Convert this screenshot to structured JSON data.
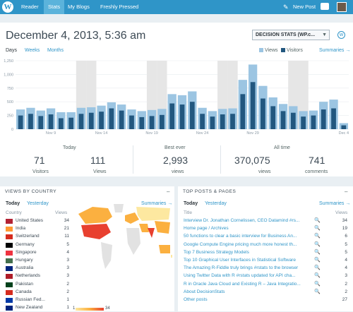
{
  "topbar": {
    "logo": "W",
    "nav": [
      {
        "label": "Reader",
        "active": false
      },
      {
        "label": "Stats",
        "active": true
      },
      {
        "label": "My Blogs",
        "active": false
      },
      {
        "label": "Freshly Pressed",
        "active": false
      }
    ],
    "new_post": "New Post"
  },
  "header": {
    "date_title": "December 4, 2013, 5:36 am",
    "site_select": "DECISION STATS (WP.c...",
    "periods": [
      "Days",
      "Weeks",
      "Months"
    ],
    "legend": {
      "views": "Views",
      "visitors": "Visitors"
    },
    "summaries": "Summaries →"
  },
  "colors": {
    "brand": "#2f95c8",
    "views_bar": "#9cc5e2",
    "visitors_bar": "#22577f",
    "weekend": "#e6e6e6"
  },
  "chart_data": {
    "type": "bar",
    "y_ticks": [
      "0",
      "250",
      "500",
      "750",
      "1,000",
      "1,250"
    ],
    "ylim": [
      0,
      1250
    ],
    "x_tick_labels": [
      "Nov 9",
      "Nov 14",
      "Nov 19",
      "Nov 24",
      "Nov 29",
      "Dec 4"
    ],
    "weekend_bands": [
      6,
      7,
      13,
      14,
      20,
      21,
      27,
      28
    ],
    "series": [
      {
        "name": "Views",
        "values": [
          360,
          390,
          340,
          380,
          310,
          310,
          390,
          400,
          430,
          490,
          450,
          360,
          330,
          350,
          370,
          640,
          620,
          690,
          390,
          330,
          370,
          380,
          900,
          1180,
          790,
          580,
          460,
          420,
          330,
          340,
          500,
          540,
          110
        ]
      },
      {
        "name": "Visitors",
        "values": [
          250,
          280,
          240,
          270,
          200,
          210,
          280,
          300,
          320,
          380,
          340,
          250,
          220,
          240,
          260,
          470,
          450,
          500,
          280,
          230,
          270,
          280,
          640,
          860,
          560,
          420,
          330,
          300,
          230,
          250,
          360,
          380,
          70
        ]
      }
    ]
  },
  "stats": {
    "today_label": "Today",
    "today_visitors": "71",
    "today_visitors_label": "Visitors",
    "today_views": "111",
    "today_views_label": "Views",
    "best_label": "Best ever",
    "best_views": "2,993",
    "best_views_label": "views",
    "alltime_label": "All time",
    "alltime_views": "370,075",
    "alltime_views_label": "views",
    "alltime_comments": "741",
    "alltime_comments_label": "comments"
  },
  "countries_panel": {
    "title": "VIEWS BY COUNTRY",
    "tabs": {
      "today": "Today",
      "yesterday": "Yesterday"
    },
    "summaries": "Summaries →",
    "col_country": "Country",
    "col_views": "Views",
    "scale_min": "1",
    "scale_max": "34",
    "rows": [
      {
        "name": "United States",
        "views": "34",
        "flag": "us"
      },
      {
        "name": "India",
        "views": "21",
        "flag": "in"
      },
      {
        "name": "Switzerland",
        "views": "11",
        "flag": "ch"
      },
      {
        "name": "Germany",
        "views": "5",
        "flag": "de"
      },
      {
        "name": "Singapore",
        "views": "4",
        "flag": "sg"
      },
      {
        "name": "Hungary",
        "views": "3",
        "flag": "hu"
      },
      {
        "name": "Australia",
        "views": "3",
        "flag": "au"
      },
      {
        "name": "Netherlands",
        "views": "3",
        "flag": "nl"
      },
      {
        "name": "Pakistan",
        "views": "2",
        "flag": "pk"
      },
      {
        "name": "Canada",
        "views": "2",
        "flag": "ca"
      },
      {
        "name": "Russian Fed...",
        "views": "1",
        "flag": "ru"
      },
      {
        "name": "New Zealand",
        "views": "1",
        "flag": "nz"
      }
    ]
  },
  "posts_panel": {
    "title": "TOP POSTS & PAGES",
    "tabs": {
      "today": "Today",
      "yesterday": "Yesterday"
    },
    "summaries": "Summaries →",
    "col_title": "Title",
    "col_views": "Views",
    "rows": [
      {
        "title": "Interview Dr. Jonathan Cornelissen, CEO Datamind #rs...",
        "views": "34"
      },
      {
        "title": "Home page / Archives",
        "views": "19"
      },
      {
        "title": "50 functions to clear a basic interview for Business An...",
        "views": "6"
      },
      {
        "title": "Google Compute Engine pricing much more honest th...",
        "views": "5"
      },
      {
        "title": "Top 7 Business Strategy Models",
        "views": "5"
      },
      {
        "title": "Top 10 Graphical User Interfaces in Statistical Software",
        "views": "4"
      },
      {
        "title": "The Amazing R-Fiddle truly brings #rstats to the browser",
        "views": "4"
      },
      {
        "title": "Using Twitter Data with R #rstats updated for API cha...",
        "views": "3"
      },
      {
        "title": "R in Oracle Java Cloud and Existing R – Java Integratio...",
        "views": "2"
      },
      {
        "title": "About DecisionStats",
        "views": "2"
      },
      {
        "title": "Other posts",
        "views": "27"
      }
    ]
  }
}
